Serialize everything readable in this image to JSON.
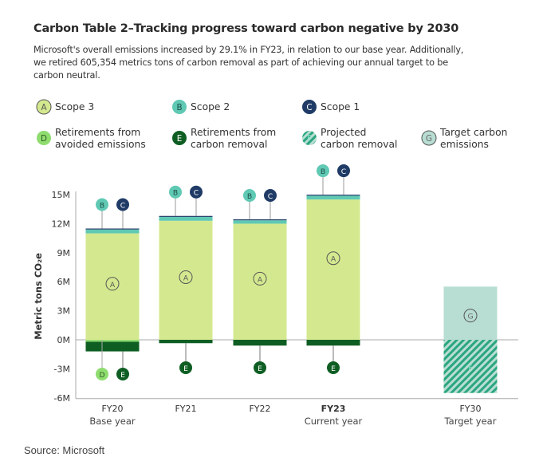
{
  "chart_data": {
    "type": "bar",
    "title": "Carbon Table 2–Tracking progress toward carbon negative by 2030",
    "subtitle_lines": [
      "Microsoft's overall emissions increased by 29.1% in FY23, in relation to our base year. Additionally,",
      "we retired 605,354 metrics tons of carbon removal as part of achieving our annual target to be",
      "carbon neutral."
    ],
    "ylabel": "Metric tons CO₂e",
    "ylim": [
      -6,
      15
    ],
    "yticks": [
      "15M",
      "12M",
      "9M",
      "6M",
      "3M",
      "0M",
      "-3M",
      "-6M"
    ],
    "ytick_values": [
      15,
      12,
      9,
      6,
      3,
      0,
      -3,
      -6
    ],
    "categories": [
      {
        "label": "FY20",
        "sublabel": "Base year",
        "bold": false
      },
      {
        "label": "FY21",
        "sublabel": "",
        "bold": false
      },
      {
        "label": "FY22",
        "sublabel": "",
        "bold": false
      },
      {
        "label": "FY23",
        "sublabel": "Current year",
        "bold": true
      },
      {
        "label": "FY30",
        "sublabel": "Target year",
        "bold": false
      }
    ],
    "legend": [
      {
        "key": "A",
        "label": [
          "Scope 3"
        ],
        "color": "#d4e98f"
      },
      {
        "key": "B",
        "label": [
          "Scope 2"
        ],
        "color": "#5fc9b4"
      },
      {
        "key": "C",
        "label": [
          "Scope 1"
        ],
        "color": "#1f3b66"
      },
      {
        "key": "D",
        "label": [
          "Retirements from",
          "avoided emissions"
        ],
        "color": "#8fdc6f"
      },
      {
        "key": "E",
        "label": [
          "Retirements from",
          "carbon removal"
        ],
        "color": "#0e5e23"
      },
      {
        "key": "F",
        "label": [
          "Projected",
          "carbon removal"
        ],
        "color": "#2aa67f",
        "hatched": true
      },
      {
        "key": "G",
        "label": [
          "Target carbon",
          "emissions"
        ],
        "color": "#b8ddd3"
      }
    ],
    "series": [
      {
        "key": "A",
        "values": [
          11.0,
          12.3,
          12.0,
          14.5,
          null
        ]
      },
      {
        "key": "B",
        "values": [
          0.4,
          0.4,
          0.35,
          0.4,
          null
        ]
      },
      {
        "key": "C",
        "values": [
          0.1,
          0.1,
          0.1,
          0.1,
          null
        ]
      },
      {
        "key": "D",
        "values": [
          -0.2,
          null,
          null,
          null,
          null
        ]
      },
      {
        "key": "E",
        "values": [
          -1.0,
          -0.35,
          -0.6,
          -0.6,
          null
        ]
      },
      {
        "key": "F",
        "values": [
          null,
          null,
          null,
          null,
          -5.5
        ]
      },
      {
        "key": "G",
        "values": [
          null,
          null,
          null,
          null,
          5.5
        ]
      }
    ],
    "grid": false
  },
  "source": "Source: Microsoft"
}
